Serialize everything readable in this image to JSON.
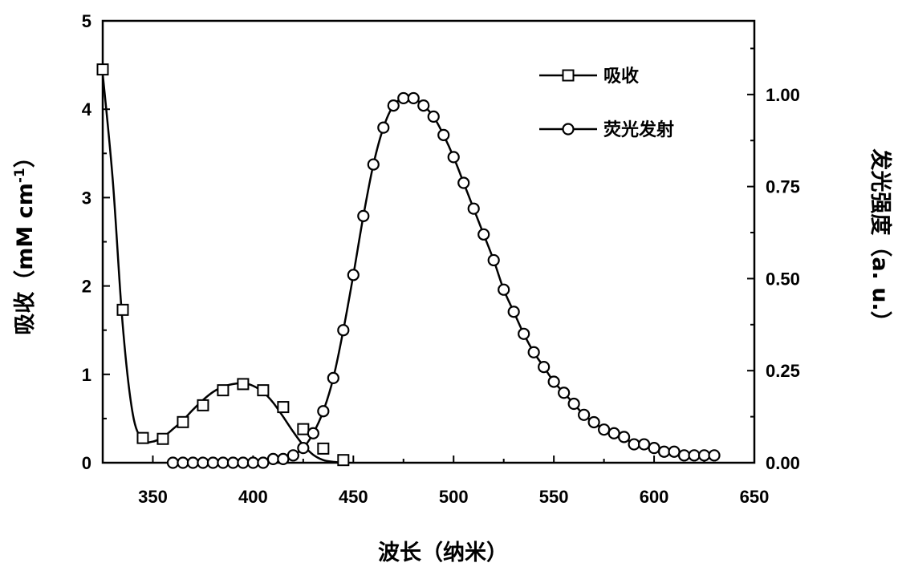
{
  "chart_data": {
    "type": "line",
    "xlabel": "波长（纳米）",
    "ylabel_left": "吸收（mM cm",
    "ylabel_left_sup": "-1",
    "ylabel_left_close": "）",
    "ylabel_right": "发光强度（a. u.）",
    "xlim": [
      325,
      650
    ],
    "ylim_left": [
      0,
      5
    ],
    "ylim_right": [
      0,
      1.2
    ],
    "x_ticks": [
      350,
      400,
      450,
      500,
      550,
      600,
      650
    ],
    "y_left_ticks": [
      0,
      1,
      2,
      3,
      4,
      5
    ],
    "y_right_ticks": [
      "0.00",
      "0.25",
      "0.50",
      "0.75",
      "1.00"
    ],
    "legend_position": "top-right",
    "grid": false,
    "series": [
      {
        "name": "吸收",
        "axis": "left",
        "marker": "square",
        "x": [
          325,
          335,
          345,
          355,
          365,
          375,
          385,
          395,
          405,
          415,
          425,
          435,
          445
        ],
        "y": [
          4.45,
          1.73,
          0.28,
          0.27,
          0.46,
          0.65,
          0.82,
          0.89,
          0.82,
          0.63,
          0.38,
          0.16,
          0.03
        ],
        "curve_x": [
          325,
          330,
          335,
          340,
          345,
          350,
          355,
          360,
          365,
          370,
          375,
          380,
          385,
          390,
          395,
          400,
          405,
          410,
          415,
          420,
          425,
          430,
          435,
          440,
          445
        ],
        "curve_y": [
          4.4,
          3.2,
          1.55,
          0.55,
          0.26,
          0.24,
          0.29,
          0.38,
          0.48,
          0.6,
          0.71,
          0.8,
          0.86,
          0.89,
          0.9,
          0.87,
          0.8,
          0.68,
          0.52,
          0.35,
          0.2,
          0.09,
          0.03,
          0.01,
          0.0
        ]
      },
      {
        "name": "荧光发射",
        "axis": "right",
        "marker": "circle",
        "x": [
          360,
          365,
          370,
          375,
          380,
          385,
          390,
          395,
          400,
          405,
          410,
          415,
          420,
          425,
          430,
          435,
          440,
          445,
          450,
          455,
          460,
          465,
          470,
          475,
          480,
          485,
          490,
          495,
          500,
          505,
          510,
          515,
          520,
          525,
          530,
          535,
          540,
          545,
          550,
          555,
          560,
          565,
          570,
          575,
          580,
          585,
          590,
          595,
          600,
          605,
          610,
          615,
          620,
          625,
          630
        ],
        "y": [
          0.0,
          0.0,
          0.0,
          0.0,
          0.0,
          0.0,
          0.0,
          0.0,
          0.0,
          0.0,
          0.01,
          0.01,
          0.02,
          0.04,
          0.08,
          0.14,
          0.23,
          0.36,
          0.51,
          0.67,
          0.81,
          0.91,
          0.97,
          0.99,
          0.99,
          0.97,
          0.94,
          0.89,
          0.83,
          0.76,
          0.69,
          0.62,
          0.55,
          0.47,
          0.41,
          0.35,
          0.3,
          0.26,
          0.22,
          0.19,
          0.16,
          0.13,
          0.11,
          0.09,
          0.08,
          0.07,
          0.05,
          0.05,
          0.04,
          0.03,
          0.03,
          0.02,
          0.02,
          0.02,
          0.02
        ]
      }
    ]
  },
  "colors": {
    "line": "#000000",
    "marker_fill": "#ffffff"
  }
}
